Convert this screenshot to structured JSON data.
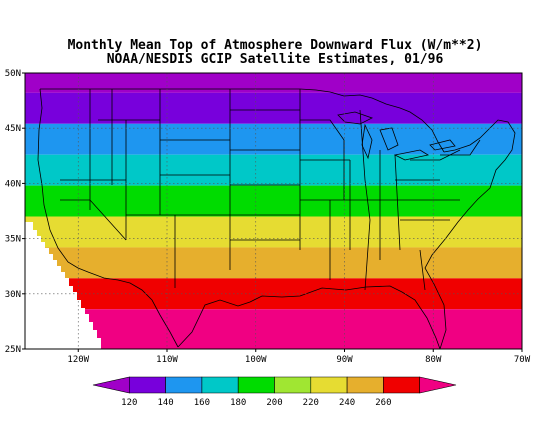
{
  "title": {
    "line1": "Monthly Mean Top of Atmosphere Downward Flux (W/m**2)",
    "line2": "NOAA/NESDIS GCIP Satellite Estimates, 01/96"
  },
  "map": {
    "lon_range": [
      -126,
      -70
    ],
    "lat_range": [
      25,
      50
    ],
    "lat_ticks": [
      {
        "value": 50,
        "label": "50N"
      },
      {
        "value": 45,
        "label": "45N"
      },
      {
        "value": 40,
        "label": "40N"
      },
      {
        "value": 35,
        "label": "35N"
      },
      {
        "value": 30,
        "label": "30N"
      },
      {
        "value": 25,
        "label": "25N"
      }
    ],
    "lon_ticks": [
      {
        "value": -120,
        "label": "120W"
      },
      {
        "value": -110,
        "label": "110W"
      },
      {
        "value": -100,
        "label": "100W"
      },
      {
        "value": -90,
        "label": "90W"
      },
      {
        "value": -80,
        "label": "80W"
      },
      {
        "value": -70,
        "label": "70W"
      }
    ],
    "bands": [
      {
        "lat_min": 48.2,
        "lat_max": 50.0,
        "color": "#a000c8"
      },
      {
        "lat_min": 45.4,
        "lat_max": 48.2,
        "color": "#7800dc"
      },
      {
        "lat_min": 42.6,
        "lat_max": 45.4,
        "color": "#1e96f0"
      },
      {
        "lat_min": 39.8,
        "lat_max": 42.6,
        "color": "#00c8c8"
      },
      {
        "lat_min": 37.0,
        "lat_max": 39.8,
        "color": "#00dc00"
      },
      {
        "lat_min": 34.2,
        "lat_max": 37.0,
        "color": "#e6dc32"
      },
      {
        "lat_min": 31.4,
        "lat_max": 34.2,
        "color": "#e6af2d"
      },
      {
        "lat_min": 28.6,
        "lat_max": 31.4,
        "color": "#f00000"
      },
      {
        "lat_min": 25.0,
        "lat_max": 28.6,
        "color": "#f00082"
      }
    ]
  },
  "colorbar": {
    "labels": [
      "120",
      "140",
      "160",
      "180",
      "200",
      "220",
      "240",
      "260"
    ],
    "colors": [
      "#a000c8",
      "#7800dc",
      "#1e96f0",
      "#00c8c8",
      "#00dc00",
      "#a0e632",
      "#e6dc32",
      "#e6af2d",
      "#f00000",
      "#f00082"
    ]
  }
}
